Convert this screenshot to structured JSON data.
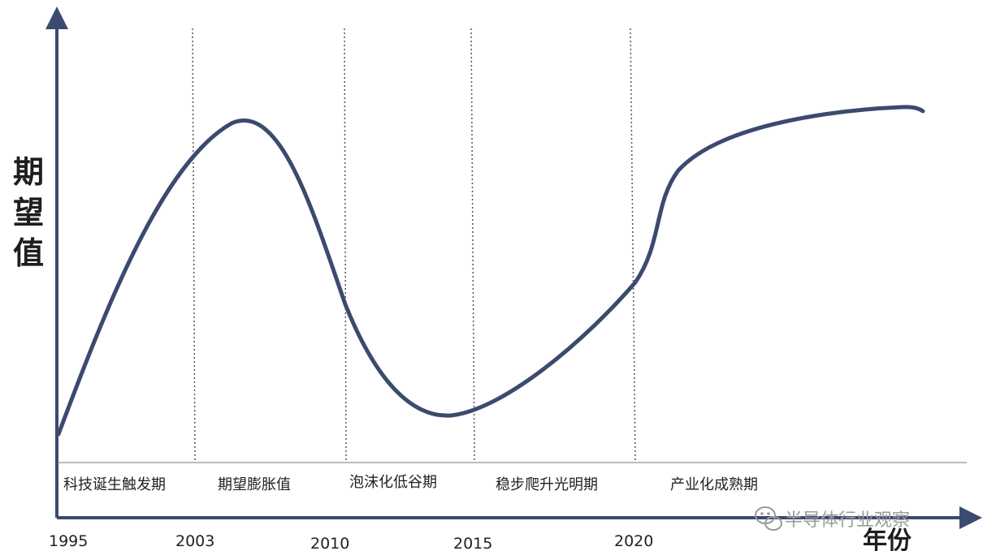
{
  "y_axis_label": [
    "期",
    "望",
    "值"
  ],
  "x_axis_label": "年份",
  "years": [
    "1995",
    "2003",
    "2010",
    "2015",
    "2020"
  ],
  "phases": [
    "科技诞生触发期",
    "期望膨胀值",
    "泡沫化低谷期",
    "稳步爬升光明期",
    "产业化成熟期"
  ],
  "watermark": "半导体行业观察",
  "colors": {
    "curve": "#3b4a6e",
    "axis": "#3b4a6e",
    "text": "#1e1e1e"
  },
  "icons": {
    "watermark": "wechat-icon"
  }
}
